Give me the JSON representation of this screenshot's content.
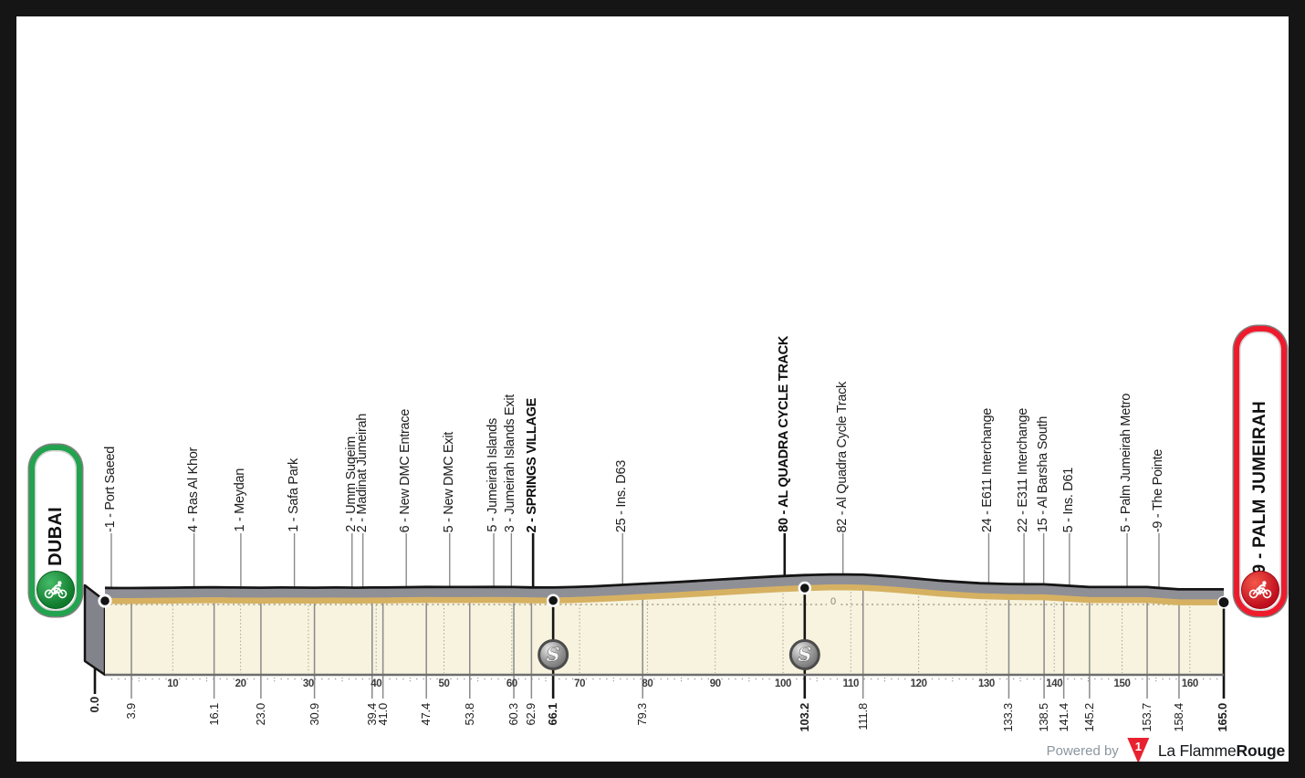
{
  "endpoints": {
    "start": {
      "label": "0 - DUBAI"
    },
    "finish": {
      "label": "-9 - PALM JUMEIRAH"
    }
  },
  "footer": {
    "powered_by": "Powered by",
    "brand_regular": "La Flamme",
    "brand_bold": "Rouge",
    "logo_number": "1"
  },
  "chart_data": {
    "type": "area",
    "x_axis": {
      "unit": "km",
      "range": [
        0,
        165
      ],
      "tick_interval": 10,
      "tick_labels": [
        10,
        20,
        30,
        40,
        50,
        60,
        70,
        80,
        90,
        100,
        110,
        120,
        130,
        140,
        150,
        160
      ]
    },
    "y_axis": {
      "zero_label": "0"
    },
    "start": {
      "km": 0.0,
      "elev": 0,
      "km_label": "0.0"
    },
    "finish": {
      "km": 165.0,
      "elev": -9,
      "km_label": "165.0"
    },
    "waypoints": [
      {
        "km": 3.9,
        "elev": -1,
        "name": "Port Saeed",
        "sprint": false
      },
      {
        "km": 16.1,
        "elev": 4,
        "name": "Ras Al Khor",
        "sprint": false
      },
      {
        "km": 23.0,
        "elev": 1,
        "name": "Meydan",
        "sprint": false
      },
      {
        "km": 30.9,
        "elev": 1,
        "name": "Safa Park",
        "sprint": false
      },
      {
        "km": 39.4,
        "elev": 2,
        "name": "Umm Suqeim",
        "sprint": false
      },
      {
        "km": 41.0,
        "elev": 2,
        "name": "Madinat Jumeirah",
        "sprint": false
      },
      {
        "km": 47.4,
        "elev": 6,
        "name": "New DMC Entrace",
        "sprint": false
      },
      {
        "km": 53.8,
        "elev": 5,
        "name": "New DMC Exit",
        "sprint": false
      },
      {
        "km": 60.3,
        "elev": 5,
        "name": "Jumeirah Islands",
        "sprint": false
      },
      {
        "km": 62.9,
        "elev": 3,
        "name": "Jumeirah Islands Exit",
        "sprint": false
      },
      {
        "km": 66.1,
        "elev": 2,
        "name": "SPRINGS VILLAGE",
        "sprint": true
      },
      {
        "km": 79.3,
        "elev": 25,
        "name": "Ins. D63",
        "sprint": false
      },
      {
        "km": 103.2,
        "elev": 80,
        "name": "AL QUADRA CYCLE TRACK",
        "sprint": true
      },
      {
        "km": 111.8,
        "elev": 82,
        "name": "Al Quadra Cycle Track",
        "sprint": false
      },
      {
        "km": 133.3,
        "elev": 24,
        "name": "E611 Interchange",
        "sprint": false
      },
      {
        "km": 138.5,
        "elev": 22,
        "name": "E311 Interchange",
        "sprint": false
      },
      {
        "km": 141.4,
        "elev": 15,
        "name": "Al Barsha South",
        "sprint": false
      },
      {
        "km": 145.2,
        "elev": 5,
        "name": "Ins. D61",
        "sprint": false
      },
      {
        "km": 153.7,
        "elev": 5,
        "name": "Palm Jumeirah Metro",
        "sprint": false
      },
      {
        "km": 158.4,
        "elev": -9,
        "name": "The Pointe",
        "sprint": false
      }
    ],
    "profile_points": [
      [
        0,
        0
      ],
      [
        2,
        -1
      ],
      [
        3.9,
        -1
      ],
      [
        7,
        0
      ],
      [
        10,
        1
      ],
      [
        13,
        3
      ],
      [
        16.1,
        4
      ],
      [
        19,
        2
      ],
      [
        23,
        1
      ],
      [
        26,
        2
      ],
      [
        30.9,
        1
      ],
      [
        34,
        2
      ],
      [
        37,
        1
      ],
      [
        39.4,
        2
      ],
      [
        41,
        2
      ],
      [
        44,
        4
      ],
      [
        47.4,
        6
      ],
      [
        50,
        5
      ],
      [
        53.8,
        5
      ],
      [
        57,
        6
      ],
      [
        60.3,
        5
      ],
      [
        62.9,
        3
      ],
      [
        66.1,
        2
      ],
      [
        69,
        5
      ],
      [
        72,
        10
      ],
      [
        75,
        16
      ],
      [
        79.3,
        25
      ],
      [
        83,
        33
      ],
      [
        87,
        43
      ],
      [
        91,
        53
      ],
      [
        95,
        63
      ],
      [
        99,
        72
      ],
      [
        103.2,
        80
      ],
      [
        107,
        84
      ],
      [
        109.5,
        84
      ],
      [
        111.8,
        82
      ],
      [
        114,
        77
      ],
      [
        117,
        68
      ],
      [
        120,
        57
      ],
      [
        123,
        46
      ],
      [
        126,
        37
      ],
      [
        129,
        29
      ],
      [
        133.3,
        24
      ],
      [
        136,
        23
      ],
      [
        138.5,
        22
      ],
      [
        141.4,
        15
      ],
      [
        145.2,
        5
      ],
      [
        149,
        5
      ],
      [
        153.7,
        5
      ],
      [
        156,
        -2
      ],
      [
        158.4,
        -9
      ],
      [
        161.5,
        -9
      ],
      [
        165,
        -9
      ]
    ],
    "colors": {
      "start_green": "#23a34f",
      "finish_red": "#ee1b2d",
      "road_gray": "#8f8f96",
      "route_gold": "#d6b161",
      "ground_cream": "#f7f3de",
      "line_black": "#141414"
    }
  }
}
